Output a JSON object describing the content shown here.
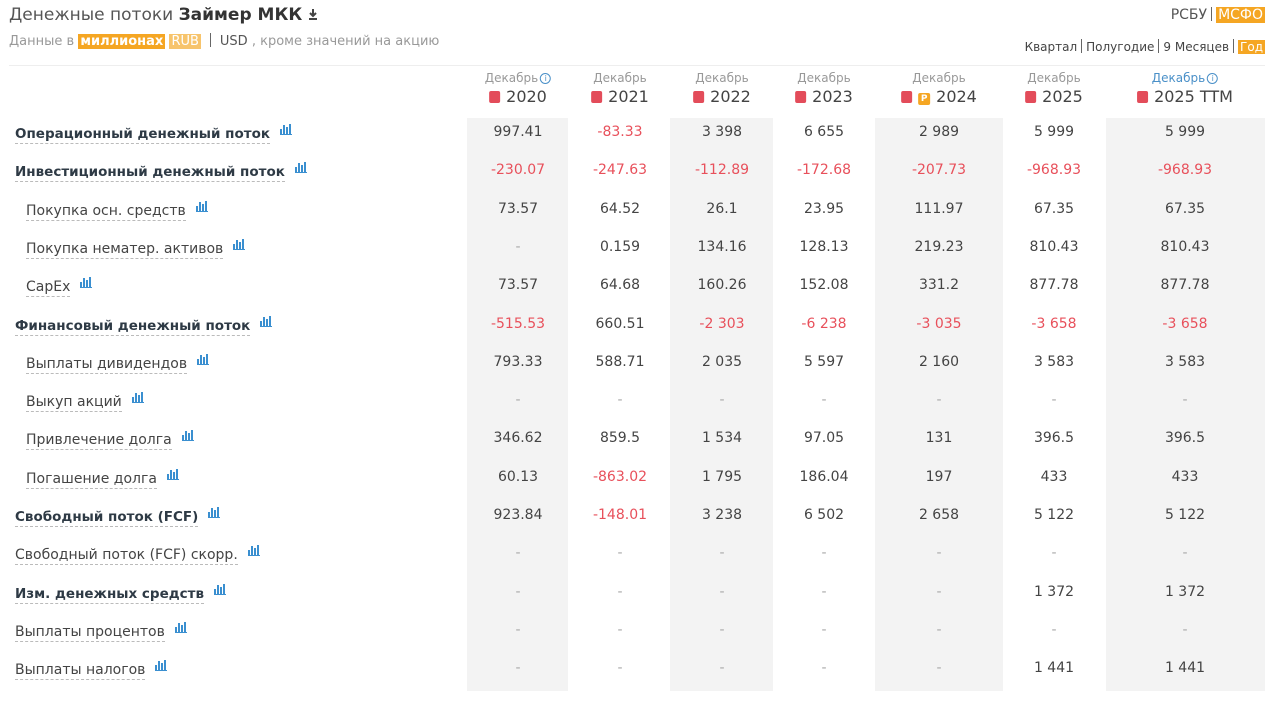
{
  "header": {
    "title": "Денежные потоки",
    "company": "Займер МКК",
    "units_prefix": "Данные в",
    "units": "миллионах",
    "currencies": [
      "RUB",
      "USD"
    ],
    "units_suffix": ", кроме значений на акцию",
    "standards": [
      "РСБУ",
      "МСФО"
    ],
    "periods": [
      "Квартал",
      "Полугодие",
      "9 Месяцев",
      "Год"
    ]
  },
  "table": {
    "columns": [
      {
        "month": "Декабрь",
        "year": "2020",
        "info": true
      },
      {
        "month": "Декабрь",
        "year": "2021"
      },
      {
        "month": "Декабрь",
        "year": "2022"
      },
      {
        "month": "Декабрь",
        "year": "2023"
      },
      {
        "month": "Декабрь",
        "year": "2024",
        "badge": "P"
      },
      {
        "month": "Декабрь",
        "year": "2025"
      },
      {
        "month": "Декабрь",
        "year": "2025 TTM",
        "info": true
      }
    ],
    "rows": [
      {
        "label": "Операционный денежный поток",
        "style": "bold",
        "values": [
          "997.41",
          "-83.33",
          "3 398",
          "6 655",
          "2 989",
          "5 999",
          "5 999"
        ]
      },
      {
        "label": "Инвестиционный денежный поток",
        "style": "bold",
        "values": [
          "-230.07",
          "-247.63",
          "-112.89",
          "-172.68",
          "-207.73",
          "-968.93",
          "-968.93"
        ]
      },
      {
        "label": "Покупка осн. средств",
        "style": "indent",
        "values": [
          "73.57",
          "64.52",
          "26.1",
          "23.95",
          "111.97",
          "67.35",
          "67.35"
        ]
      },
      {
        "label": "Покупка нематер. активов",
        "style": "indent",
        "values": [
          "-",
          "0.159",
          "134.16",
          "128.13",
          "219.23",
          "810.43",
          "810.43"
        ]
      },
      {
        "label": "CapEx",
        "style": "indent",
        "values": [
          "73.57",
          "64.68",
          "160.26",
          "152.08",
          "331.2",
          "877.78",
          "877.78"
        ]
      },
      {
        "label": "Финансовый денежный поток",
        "style": "bold",
        "values": [
          "-515.53",
          "660.51",
          "-2 303",
          "-6 238",
          "-3 035",
          "-3 658",
          "-3 658"
        ]
      },
      {
        "label": "Выплаты дивидендов",
        "style": "indent",
        "values": [
          "793.33",
          "588.71",
          "2 035",
          "5 597",
          "2 160",
          "3 583",
          "3 583"
        ]
      },
      {
        "label": "Выкуп акций",
        "style": "indent",
        "values": [
          "-",
          "-",
          "-",
          "-",
          "-",
          "-",
          "-"
        ]
      },
      {
        "label": "Привлечение долга",
        "style": "indent",
        "values": [
          "346.62",
          "859.5",
          "1 534",
          "97.05",
          "131",
          "396.5",
          "396.5"
        ]
      },
      {
        "label": "Погашение долга",
        "style": "indent",
        "values": [
          "60.13",
          "-863.02",
          "1 795",
          "186.04",
          "197",
          "433",
          "433"
        ]
      },
      {
        "label": "Свободный поток (FCF)",
        "style": "bold",
        "values": [
          "923.84",
          "-148.01",
          "3 238",
          "6 502",
          "2 658",
          "5 122",
          "5 122"
        ]
      },
      {
        "label": "Свободный поток (FCF) скорр.",
        "style": "plain",
        "values": [
          "-",
          "-",
          "-",
          "-",
          "-",
          "-",
          "-"
        ]
      },
      {
        "label": "Изм. денежных средств",
        "style": "bold",
        "values": [
          "-",
          "-",
          "-",
          "-",
          "-",
          "1 372",
          "1 372"
        ]
      },
      {
        "label": "Выплаты процентов",
        "style": "plain",
        "values": [
          "-",
          "-",
          "-",
          "-",
          "-",
          "-",
          "-"
        ]
      },
      {
        "label": "Выплаты налогов",
        "style": "plain",
        "values": [
          "-",
          "-",
          "-",
          "-",
          "-",
          "1 441",
          "1 441"
        ]
      }
    ]
  }
}
